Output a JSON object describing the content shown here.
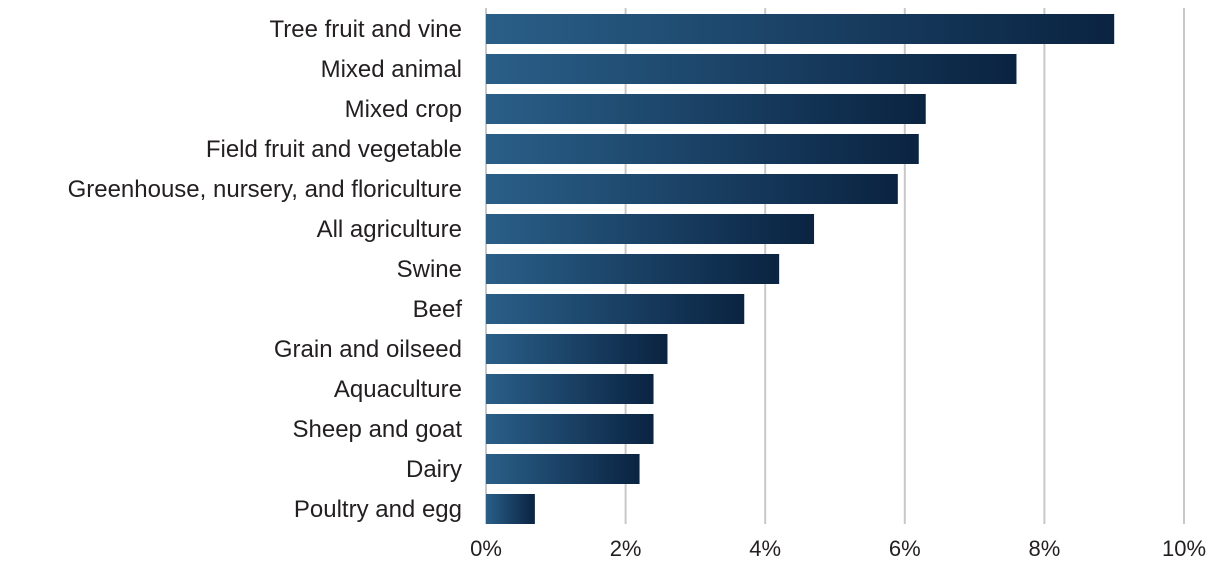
{
  "chart_data": {
    "type": "bar",
    "orientation": "horizontal",
    "title": "",
    "xlabel": "",
    "ylabel": "",
    "categories": [
      "Tree fruit and vine",
      "Mixed animal",
      "Mixed crop",
      "Field fruit and vegetable",
      "Greenhouse, nursery, and floriculture",
      "All agriculture",
      "Swine",
      "Beef",
      "Grain and oilseed",
      "Aquaculture",
      "Sheep and goat",
      "Dairy",
      "Poultry and egg"
    ],
    "values": [
      9.0,
      7.6,
      6.3,
      6.2,
      5.9,
      4.7,
      4.2,
      3.7,
      2.6,
      2.4,
      2.4,
      2.2,
      0.7
    ],
    "xlim": [
      0,
      10
    ],
    "x_ticks": [
      0,
      2,
      4,
      6,
      8,
      10
    ],
    "x_tick_labels": [
      "0%",
      "2%",
      "4%",
      "6%",
      "8%",
      "10%"
    ],
    "grid": "vertical",
    "legend": "none",
    "colors": {
      "bar_light": "#2a5f88",
      "bar_dark": "#0a2341",
      "grid": "#c8c8c8",
      "text": "#231f20"
    }
  }
}
